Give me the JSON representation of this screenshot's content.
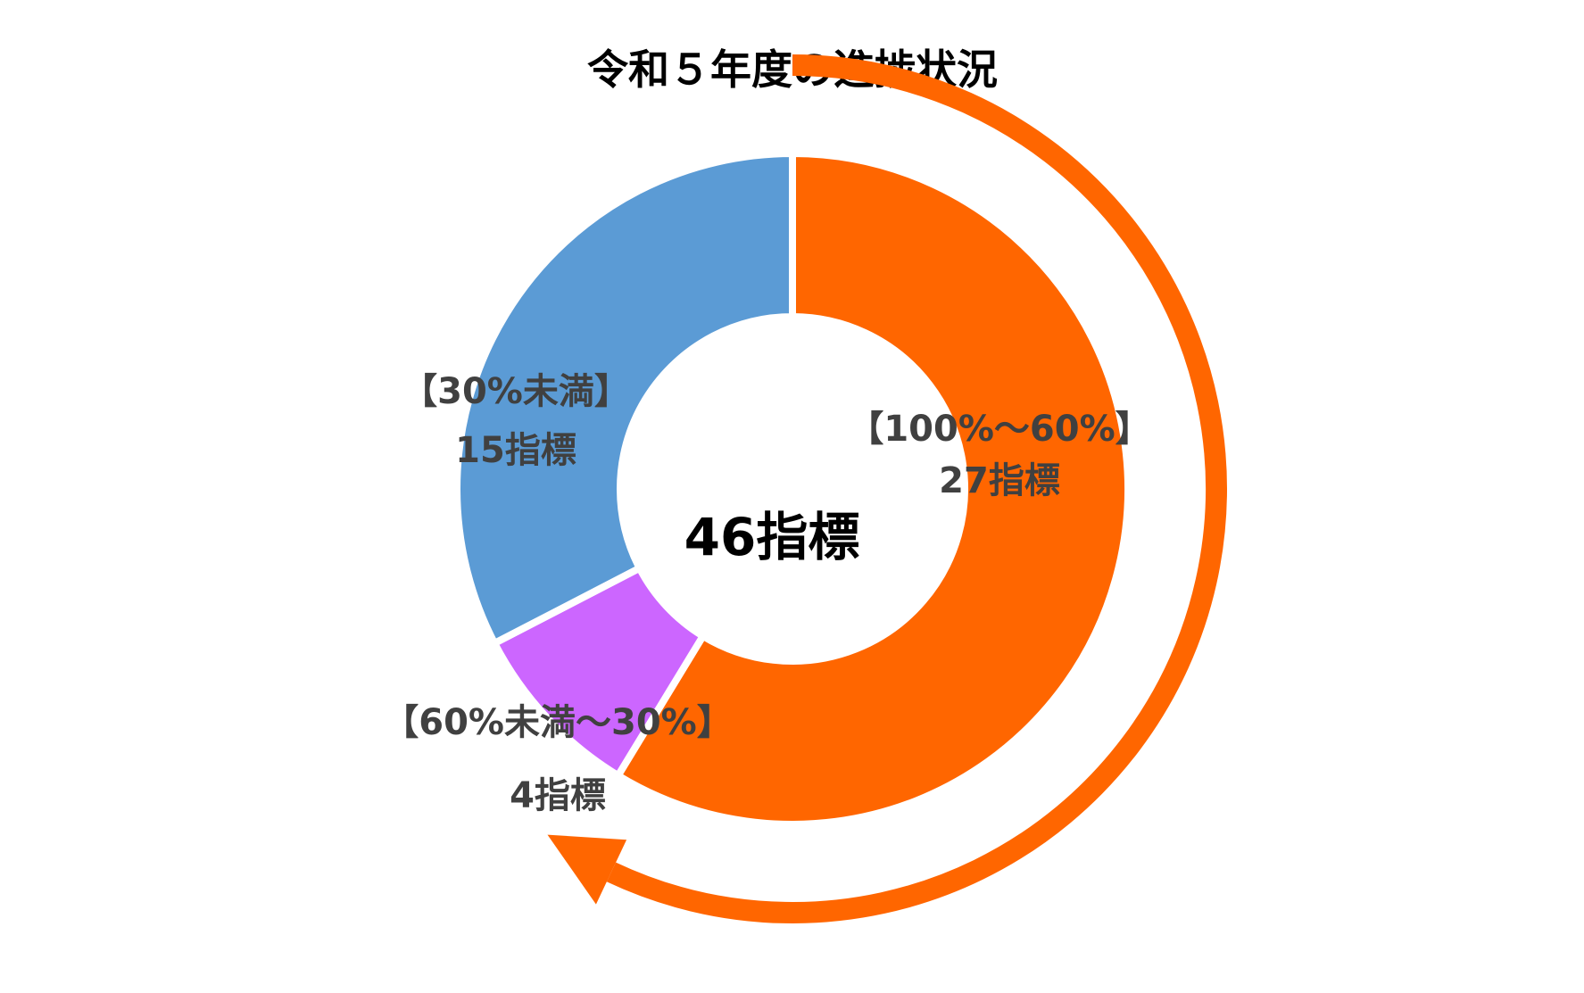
{
  "chart_data": {
    "type": "pie",
    "variant": "donut",
    "title": "令和５年度の進捗状況",
    "center_label": "46指標",
    "total": 46,
    "slices": [
      {
        "category": "【100%～60%】",
        "value": 27,
        "value_label": "27指標",
        "color": "#ff6600"
      },
      {
        "category": "【60%未満～30%】",
        "value": 4,
        "value_label": "4指標",
        "color": "#cc66ff"
      },
      {
        "category": "【30%未満】",
        "value": 15,
        "value_label": "15指標",
        "color": "#5b9bd5"
      }
    ],
    "start_angle": "12 o'clock",
    "direction": "clockwise",
    "arrow": {
      "color": "#ff6600",
      "direction": "clockwise"
    },
    "label_color": "#404040"
  }
}
